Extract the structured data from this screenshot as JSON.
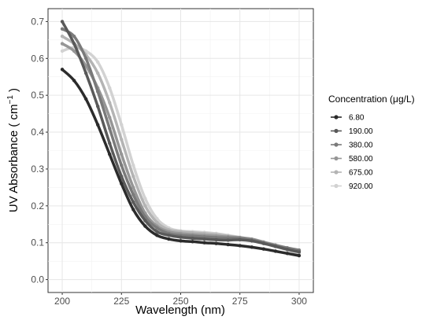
{
  "chart_data": {
    "type": "line",
    "xlabel": "Wavelength (nm)",
    "ylabel_main": "UV Absorbance ( cm",
    "ylabel_sup": "−1",
    "ylabel_end": " )",
    "xlim": [
      194,
      306
    ],
    "ylim": [
      -0.035,
      0.735
    ],
    "x_ticks": [
      200,
      225,
      250,
      275,
      300
    ],
    "y_ticks": [
      0.0,
      0.1,
      0.2,
      0.3,
      0.4,
      0.5,
      0.6,
      0.7
    ],
    "y_tick_labels": [
      "0.0",
      "0.1",
      "0.2",
      "0.3",
      "0.4",
      "0.5",
      "0.6",
      "0.7"
    ],
    "grid": true,
    "legend": {
      "title": "Concentration (μg/L)",
      "position": "right"
    },
    "x": [
      200,
      205,
      210,
      215,
      220,
      225,
      230,
      235,
      240,
      245,
      250,
      255,
      260,
      265,
      270,
      275,
      280,
      285,
      290,
      295,
      300
    ],
    "series": [
      {
        "name": "6.80",
        "color": "#2b2b2b",
        "values": [
          0.57,
          0.54,
          0.49,
          0.42,
          0.34,
          0.26,
          0.19,
          0.145,
          0.12,
          0.11,
          0.105,
          0.103,
          0.1,
          0.098,
          0.095,
          0.092,
          0.088,
          0.083,
          0.077,
          0.071,
          0.065
        ]
      },
      {
        "name": "190.00",
        "color": "#595959",
        "values": [
          0.7,
          0.64,
          0.56,
          0.47,
          0.37,
          0.28,
          0.21,
          0.16,
          0.13,
          0.12,
          0.115,
          0.112,
          0.11,
          0.108,
          0.107,
          0.108,
          0.105,
          0.098,
          0.09,
          0.082,
          0.075
        ]
      },
      {
        "name": "380.00",
        "color": "#7a7a7a",
        "values": [
          0.68,
          0.66,
          0.6,
          0.51,
          0.41,
          0.31,
          0.23,
          0.17,
          0.14,
          0.125,
          0.12,
          0.118,
          0.116,
          0.114,
          0.113,
          0.112,
          0.108,
          0.1,
          0.092,
          0.086,
          0.08
        ]
      },
      {
        "name": "580.00",
        "color": "#969696",
        "values": [
          0.64,
          0.62,
          0.58,
          0.52,
          0.44,
          0.34,
          0.25,
          0.18,
          0.145,
          0.13,
          0.125,
          0.122,
          0.12,
          0.118,
          0.116,
          0.114,
          0.11,
          0.102,
          0.094,
          0.086,
          0.078
        ]
      },
      {
        "name": "675.00",
        "color": "#b4b4b4",
        "values": [
          0.66,
          0.64,
          0.61,
          0.56,
          0.48,
          0.38,
          0.28,
          0.2,
          0.155,
          0.135,
          0.13,
          0.127,
          0.125,
          0.122,
          0.118,
          0.114,
          0.108,
          0.1,
          0.092,
          0.083,
          0.075
        ]
      },
      {
        "name": "920.00",
        "color": "#d2d2d2",
        "values": [
          0.62,
          0.63,
          0.62,
          0.59,
          0.52,
          0.42,
          0.31,
          0.22,
          0.165,
          0.14,
          0.132,
          0.13,
          0.128,
          0.125,
          0.12,
          0.115,
          0.108,
          0.1,
          0.09,
          0.08,
          0.07
        ]
      }
    ]
  }
}
